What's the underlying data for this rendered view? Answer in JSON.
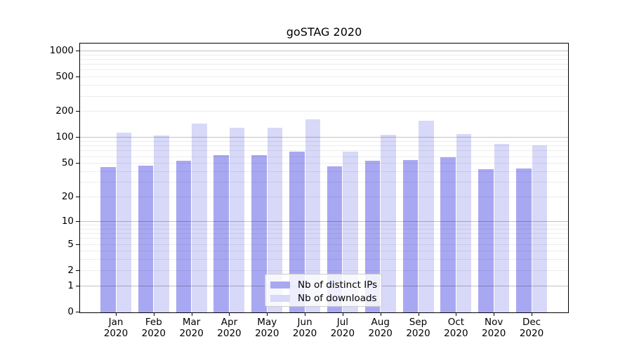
{
  "chart_data": {
    "type": "bar",
    "title": "goSTAG 2020",
    "scale": "log10(x+1)",
    "categories": [
      "Jan",
      "Feb",
      "Mar",
      "Apr",
      "May",
      "Jun",
      "Jul",
      "Aug",
      "Sep",
      "Oct",
      "Nov",
      "Dec"
    ],
    "category_year": "2020",
    "series": [
      {
        "name": "Nb of distinct IPs",
        "color": "#a8a8f2",
        "values": [
          45,
          47,
          53,
          62,
          62,
          68,
          46,
          53,
          54,
          58,
          42,
          43
        ]
      },
      {
        "name": "Nb of downloads",
        "color": "#d8d8f8",
        "values": [
          112,
          104,
          145,
          128,
          129,
          161,
          68,
          107,
          154,
          109,
          83,
          81
        ]
      }
    ],
    "xlabel": "",
    "ylabel": "",
    "y_ticks": [
      1000,
      500,
      200,
      100,
      50,
      20,
      10,
      5,
      2,
      1,
      0
    ],
    "ylim": [
      0,
      1250
    ],
    "grid": "horizontal major+minor",
    "legend_position": "lower center inside"
  },
  "colors": {
    "bar_distinct_ips": "#a8a8f2",
    "bar_downloads": "#d8d8f8",
    "major_gridline": "rgba(0,0,0,0.24)",
    "minor_gridline": "rgba(0,0,0,0.07)",
    "axis": "#000000",
    "background": "#ffffff"
  }
}
